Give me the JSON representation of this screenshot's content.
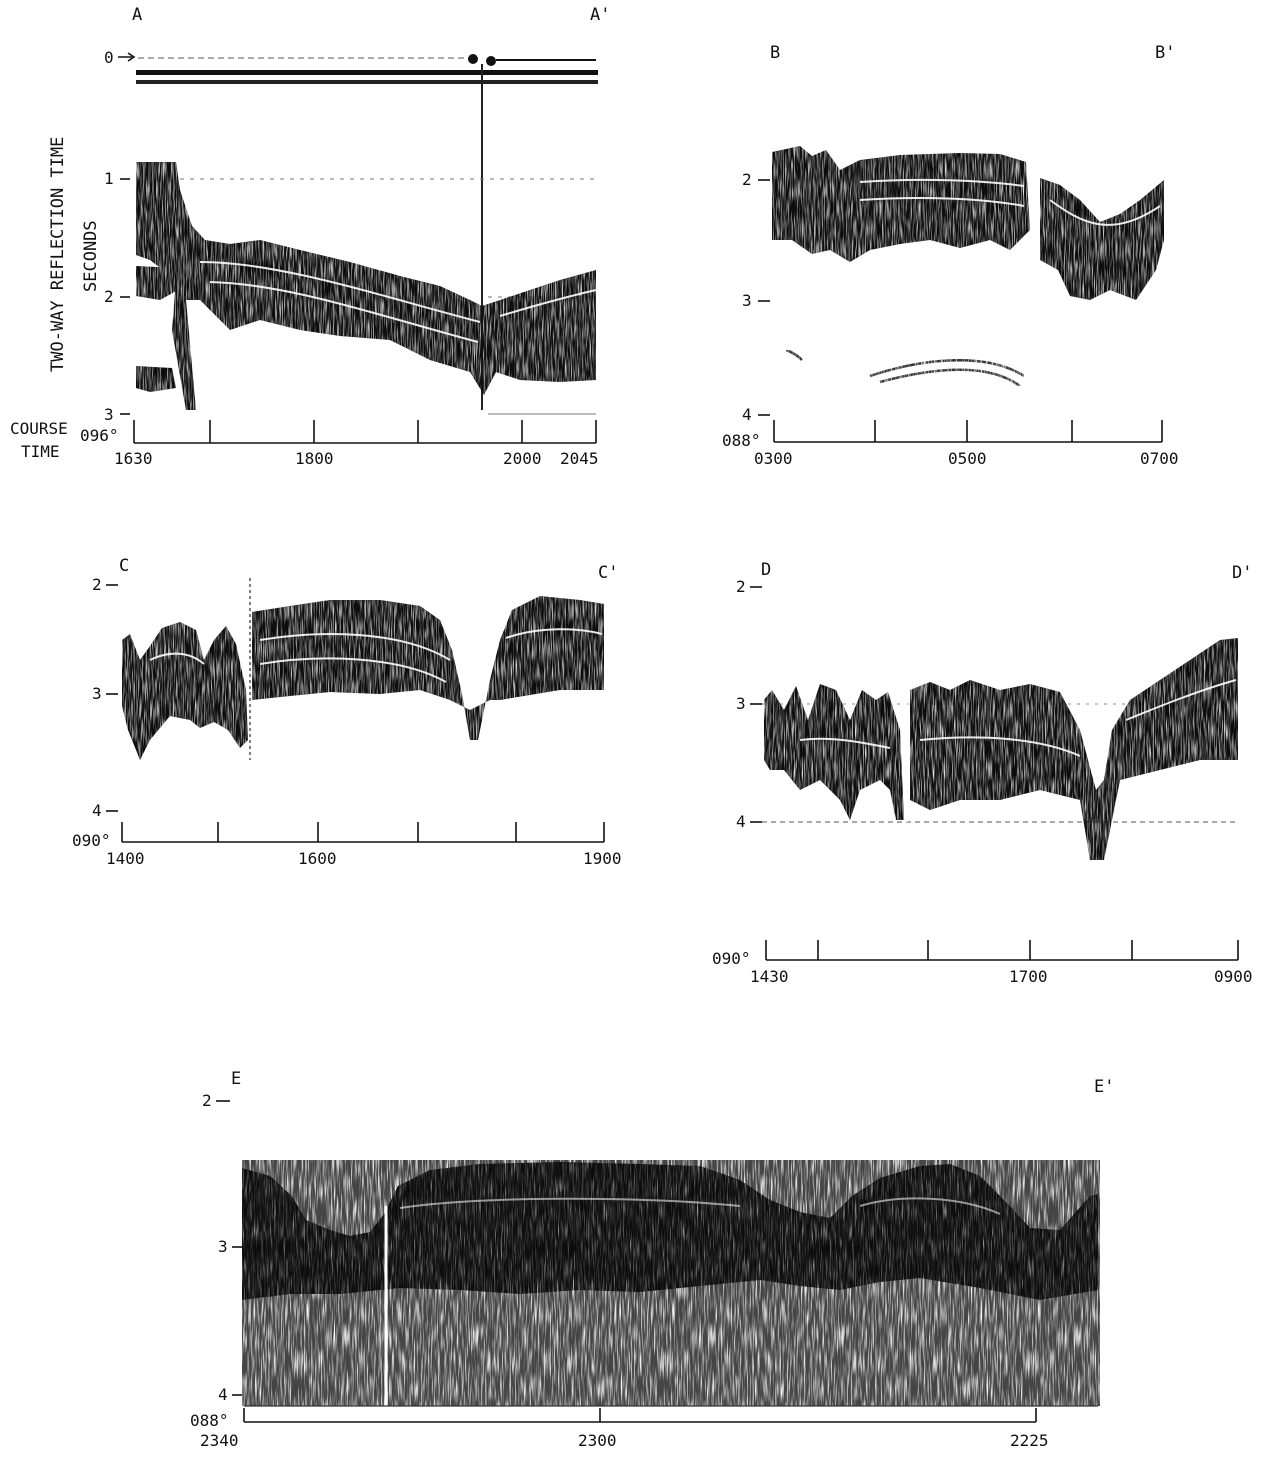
{
  "axis_title": {
    "line1": "TWO-WAY REFLECTION TIME",
    "line2": "SECONDS"
  },
  "left_labels": {
    "course": "COURSE",
    "time": "TIME"
  },
  "panels": [
    {
      "id": "A",
      "start_label": "A",
      "end_label": "A'",
      "course": "096°",
      "y_ticks": [
        "0",
        "1",
        "2",
        "3"
      ],
      "time_labels": [
        "1630",
        "1800",
        "2000",
        "2045"
      ]
    },
    {
      "id": "B",
      "start_label": "B",
      "end_label": "B'",
      "course": "088°",
      "y_ticks": [
        "2",
        "3",
        "4"
      ],
      "time_labels": [
        "0300",
        "0500",
        "0700"
      ]
    },
    {
      "id": "C",
      "start_label": "C",
      "end_label": "C'",
      "course": "090°",
      "y_ticks": [
        "2",
        "3",
        "4"
      ],
      "time_labels": [
        "1400",
        "1600",
        "1900"
      ]
    },
    {
      "id": "D",
      "start_label": "D",
      "end_label": "D'",
      "course": "090°",
      "y_ticks": [
        "2",
        "3",
        "4"
      ],
      "time_labels": [
        "1430",
        "1700",
        "0900"
      ]
    },
    {
      "id": "E",
      "start_label": "E",
      "end_label": "E'",
      "course": "088°",
      "y_ticks": [
        "2",
        "3",
        "4"
      ],
      "time_labels": [
        "2340",
        "2300",
        "2225"
      ]
    }
  ],
  "colors": {
    "ink": "#111111",
    "paper": "#ffffff"
  }
}
